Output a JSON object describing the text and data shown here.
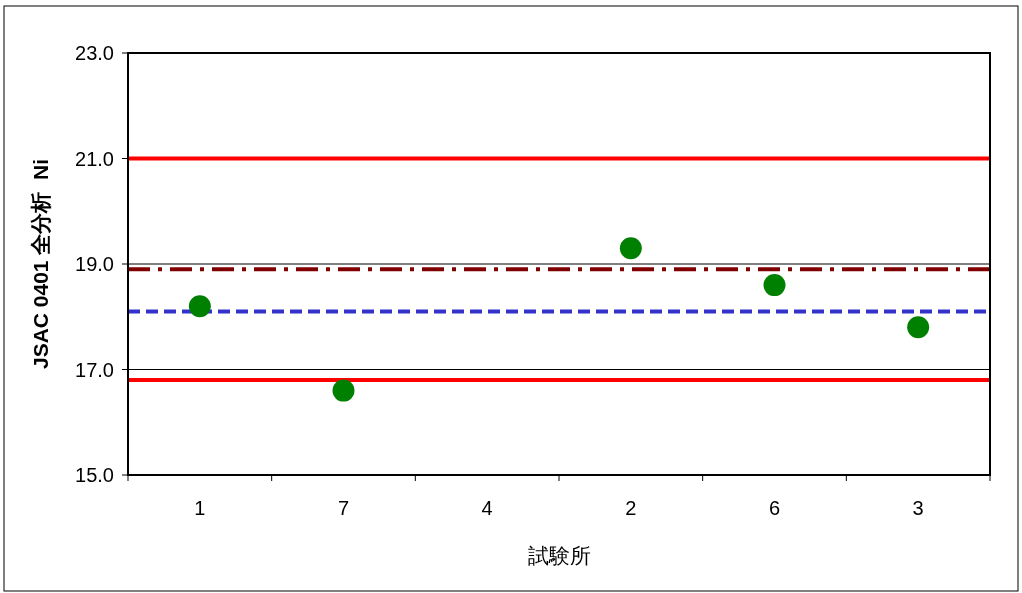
{
  "chart_data": {
    "type": "scatter",
    "ylabel": "JSAC 0401 全分析  Ni",
    "xlabel": "試験所",
    "categories": [
      "1",
      "7",
      "4",
      "2",
      "6",
      "3"
    ],
    "series": [
      {
        "color": "#008000",
        "values": [
          18.2,
          16.6,
          null,
          19.3,
          18.6,
          17.8
        ]
      }
    ],
    "ylim": [
      15,
      23
    ],
    "yticks": [
      {
        "value": 15,
        "label": "15.0"
      },
      {
        "value": 17,
        "label": "17.0"
      },
      {
        "value": 19,
        "label": "19.0"
      },
      {
        "value": 21,
        "label": "21.0"
      },
      {
        "value": 23,
        "label": "23.0"
      }
    ],
    "grid": "y",
    "marker": "circle",
    "ref_lines": [
      {
        "axis": "y",
        "value": 21.0,
        "color": "#ff0000",
        "line_style": "solid"
      },
      {
        "axis": "y",
        "value": 16.8,
        "color": "#ff0000",
        "line_style": "solid"
      },
      {
        "axis": "y",
        "value": 18.9,
        "color": "#800000",
        "line_style": "dashdot"
      },
      {
        "axis": "y",
        "value": 18.1,
        "color": "#3333cc",
        "line_style": "dashed"
      }
    ]
  }
}
